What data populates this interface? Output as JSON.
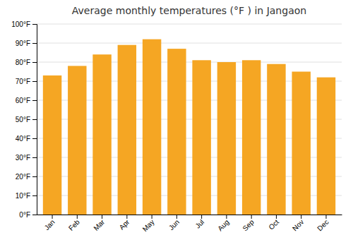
{
  "chart_data": {
    "type": "bar",
    "title": "Average monthly temperatures (°F ) in Jangaon",
    "categories": [
      "Jan",
      "Feb",
      "Mar",
      "Apr",
      "May",
      "Jun",
      "Jul",
      "Aug",
      "Sep",
      "Oct",
      "Nov",
      "Dec"
    ],
    "values": [
      73,
      78,
      84,
      89,
      92,
      87,
      81,
      80,
      81,
      79,
      75,
      72
    ],
    "color": "#F5A623",
    "ylim": [
      0,
      100
    ],
    "yticks": [
      {
        "value": 0,
        "label": "0°F"
      },
      {
        "value": 10,
        "label": "10°F"
      },
      {
        "value": 20,
        "label": "20°F"
      },
      {
        "value": 30,
        "label": "30°F"
      },
      {
        "value": 40,
        "label": "40°F"
      },
      {
        "value": 50,
        "label": "50°F"
      },
      {
        "value": 60,
        "label": "60°F"
      },
      {
        "value": 70,
        "label": "70°F"
      },
      {
        "value": 80,
        "label": "80°F"
      },
      {
        "value": 90,
        "label": "90°F"
      },
      {
        "value": 100,
        "label": "100°F"
      }
    ],
    "grid": true
  }
}
